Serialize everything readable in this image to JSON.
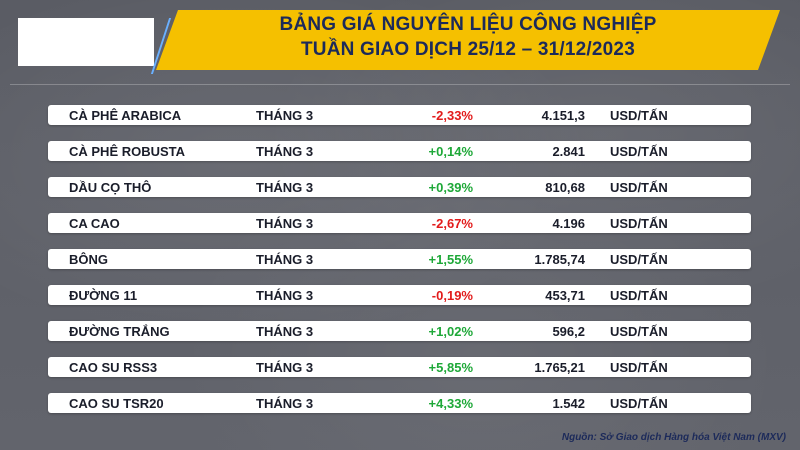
{
  "header": {
    "title_line1": "BẢNG GIÁ NGUYÊN LIỆU CÔNG NGHIỆP",
    "title_line2": "TUẦN GIAO DỊCH 25/12 – 31/12/2023"
  },
  "colors": {
    "banner": "#f5c000",
    "title": "#1c2a5a",
    "up": "#1ea838",
    "down": "#e21b1b"
  },
  "rows": [
    {
      "name": "CÀ PHÊ ARABICA",
      "month": "THÁNG 3",
      "change": "-2,33%",
      "direction": "down",
      "price": "4.151,3",
      "unit": "USD/TẤN"
    },
    {
      "name": "CÀ PHÊ ROBUSTA",
      "month": "THÁNG 3",
      "change": "+0,14%",
      "direction": "up",
      "price": "2.841",
      "unit": "USD/TẤN"
    },
    {
      "name": "DẦU CỌ THÔ",
      "month": "THÁNG 3",
      "change": "+0,39%",
      "direction": "up",
      "price": "810,68",
      "unit": "USD/TẤN"
    },
    {
      "name": "CA CAO",
      "month": "THÁNG 3",
      "change": "-2,67%",
      "direction": "down",
      "price": "4.196",
      "unit": "USD/TẤN"
    },
    {
      "name": "BÔNG",
      "month": "THÁNG 3",
      "change": "+1,55%",
      "direction": "up",
      "price": "1.785,74",
      "unit": "USD/TẤN"
    },
    {
      "name": "ĐƯỜNG 11",
      "month": "THÁNG 3",
      "change": "-0,19%",
      "direction": "down",
      "price": "453,71",
      "unit": "USD/TẤN"
    },
    {
      "name": "ĐƯỜNG TRẮNG",
      "month": "THÁNG 3",
      "change": "+1,02%",
      "direction": "up",
      "price": "596,2",
      "unit": "USD/TẤN"
    },
    {
      "name": "CAO SU RSS3",
      "month": "THÁNG 3",
      "change": "+5,85%",
      "direction": "up",
      "price": "1.765,21",
      "unit": "USD/TẤN"
    },
    {
      "name": "CAO SU TSR20",
      "month": "THÁNG 3",
      "change": "+4,33%",
      "direction": "up",
      "price": "1.542",
      "unit": "USD/TẤN"
    }
  ],
  "footer": {
    "source": "Nguồn: Sở Giao dịch Hàng hóa Việt Nam (MXV)"
  }
}
